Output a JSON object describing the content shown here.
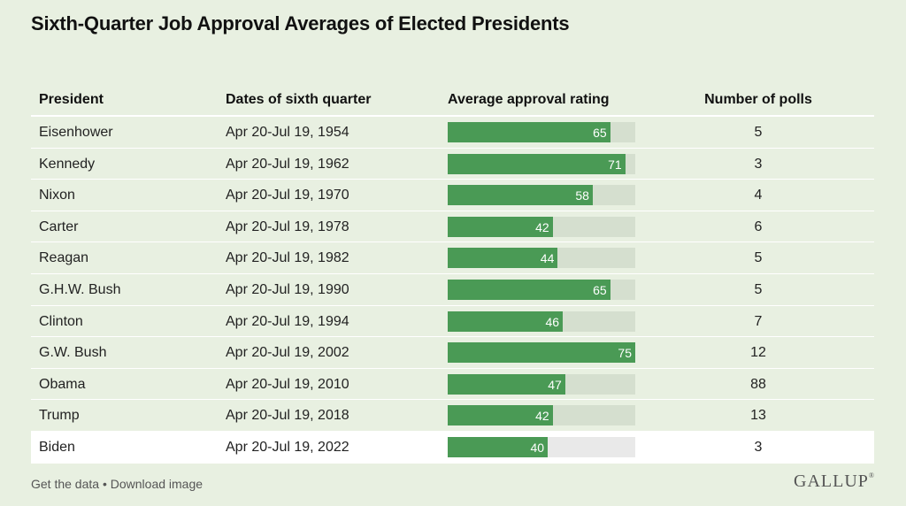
{
  "title": "Sixth-Quarter Job Approval Averages of Elected Presidents",
  "headers": {
    "president": "President",
    "dates": "Dates of sixth quarter",
    "approval": "Average approval rating",
    "polls": "Number of polls"
  },
  "chart_data": {
    "type": "table",
    "title": "Sixth-Quarter Job Approval Averages of Elected Presidents",
    "columns": [
      "President",
      "Dates of sixth quarter",
      "Average approval rating",
      "Number of polls"
    ],
    "approval_max": 75,
    "rows": [
      {
        "president": "Eisenhower",
        "dates": "Apr 20-Jul 19, 1954",
        "approval": 65,
        "polls": 5
      },
      {
        "president": "Kennedy",
        "dates": "Apr 20-Jul 19, 1962",
        "approval": 71,
        "polls": 3
      },
      {
        "president": "Nixon",
        "dates": "Apr 20-Jul 19, 1970",
        "approval": 58,
        "polls": 4
      },
      {
        "president": "Carter",
        "dates": "Apr 20-Jul 19, 1978",
        "approval": 42,
        "polls": 6
      },
      {
        "president": "Reagan",
        "dates": "Apr 20-Jul 19, 1982",
        "approval": 44,
        "polls": 5
      },
      {
        "president": "G.H.W. Bush",
        "dates": "Apr 20-Jul 19, 1990",
        "approval": 65,
        "polls": 5
      },
      {
        "president": "Clinton",
        "dates": "Apr 20-Jul 19, 1994",
        "approval": 46,
        "polls": 7
      },
      {
        "president": "G.W. Bush",
        "dates": "Apr 20-Jul 19, 2002",
        "approval": 75,
        "polls": 12
      },
      {
        "president": "Obama",
        "dates": "Apr 20-Jul 19, 2010",
        "approval": 47,
        "polls": 88
      },
      {
        "president": "Trump",
        "dates": "Apr 20-Jul 19, 2018",
        "approval": 42,
        "polls": 13
      },
      {
        "president": "Biden",
        "dates": "Apr 20-Jul 19, 2022",
        "approval": 40,
        "polls": 3,
        "highlight": true
      }
    ]
  },
  "footer": {
    "get_data": "Get the data",
    "separator": " • ",
    "download": "Download image"
  },
  "logo": "GALLUP",
  "colors": {
    "background": "#e8f0e1",
    "bar_fill": "#4a9a55",
    "bar_track": "#d5dfcf",
    "highlight_row": "#ffffff"
  }
}
